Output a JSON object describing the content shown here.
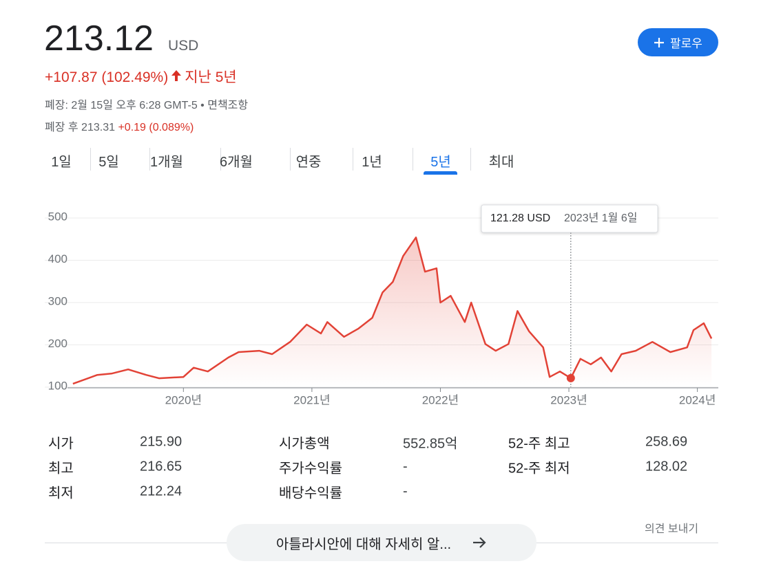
{
  "header": {
    "price": "213.12",
    "currency": "USD",
    "change": "+107.87 (102.49%)",
    "period": "지난 5년",
    "closed_info": "폐장: 2월 15일 오후 6:28 GMT-5 • ",
    "disclaimer": "면책조항",
    "after_hours_label": "폐장 후 213.31",
    "after_hours_change": "+0.19 (0.089%)",
    "follow": "팔로우"
  },
  "tabs": {
    "items": [
      "1일",
      "5일",
      "1개월",
      "6개월",
      "연중",
      "1년",
      "5년",
      "최대"
    ],
    "active": 6
  },
  "chart_data": {
    "type": "line",
    "x": [
      2019.14,
      2019.33,
      2019.44,
      2019.57,
      2019.71,
      2019.81,
      2020.0,
      2020.08,
      2020.19,
      2020.35,
      2020.43,
      2020.59,
      2020.69,
      2020.83,
      2020.96,
      2021.07,
      2021.12,
      2021.25,
      2021.36,
      2021.47,
      2021.55,
      2021.63,
      2021.71,
      2021.81,
      2021.88,
      2021.97,
      2022.0,
      2022.08,
      2022.19,
      2022.24,
      2022.35,
      2022.43,
      2022.53,
      2022.6,
      2022.69,
      2022.8,
      2022.85,
      2022.93,
      2023.015,
      2023.09,
      2023.17,
      2023.25,
      2023.33,
      2023.41,
      2023.52,
      2023.65,
      2023.79,
      2023.92,
      2023.97,
      2024.05,
      2024.11
    ],
    "values": [
      108,
      129,
      132,
      142,
      129,
      121,
      124,
      146,
      137,
      170,
      183,
      186,
      178,
      207,
      248,
      227,
      254,
      219,
      238,
      264,
      324,
      349,
      410,
      454,
      373,
      381,
      300,
      316,
      254,
      300,
      202,
      186,
      202,
      280,
      232,
      194,
      124,
      137,
      121.28,
      167,
      154,
      170,
      137,
      178,
      186,
      207,
      183,
      194,
      235,
      251,
      215
    ],
    "color": "#e24236",
    "xlim": [
      2019.13,
      2024.12
    ],
    "xticks": [
      {
        "value": 2020,
        "label": "2020년"
      },
      {
        "value": 2021,
        "label": "2021년"
      },
      {
        "value": 2022,
        "label": "2022년"
      },
      {
        "value": 2023,
        "label": "2023년"
      },
      {
        "value": 2024,
        "label": "2024년"
      }
    ],
    "ylim": [
      100,
      500
    ],
    "yticks": [
      100,
      200,
      300,
      400,
      500
    ],
    "grid": true,
    "tooltip": {
      "value": 121.28,
      "label": "121.28 USD",
      "date": "2023년 1월 6일",
      "x": 2023.015
    }
  },
  "stats": {
    "rows": [
      [
        "시가",
        "215.90",
        "시가총액",
        "552.85억",
        "52-주 최고",
        "258.69"
      ],
      [
        "최고",
        "216.65",
        "주가수익률",
        "-",
        "52-주 최저",
        "128.02"
      ],
      [
        "최저",
        "212.24",
        "배당수익률",
        "-"
      ]
    ]
  },
  "feedback": "의견 보내기",
  "more_button": "아틀라시안에 대해 자세히 알..."
}
